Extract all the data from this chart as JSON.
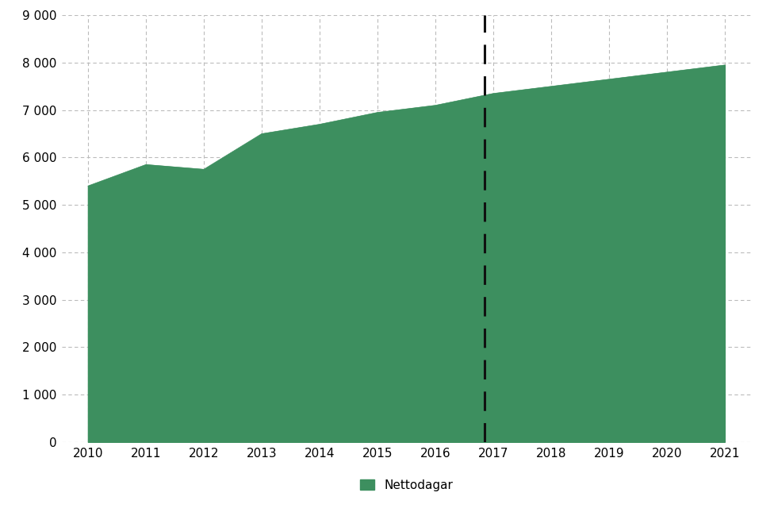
{
  "years": [
    2010,
    2011,
    2012,
    2013,
    2014,
    2015,
    2016,
    2017,
    2018,
    2019,
    2020,
    2021
  ],
  "values": [
    5400,
    5850,
    5750,
    6500,
    6700,
    6950,
    7100,
    7350,
    7500,
    7650,
    7800,
    7950
  ],
  "fill_color": "#3d8f5f",
  "dashed_line_x": 2016.85,
  "dashed_line_color": "#111111",
  "ylim": [
    0,
    9000
  ],
  "yticks": [
    0,
    1000,
    2000,
    3000,
    4000,
    5000,
    6000,
    7000,
    8000,
    9000
  ],
  "xlim_left": 2009.55,
  "xlim_right": 2021.45,
  "xticks": [
    2010,
    2011,
    2012,
    2013,
    2014,
    2015,
    2016,
    2017,
    2018,
    2019,
    2020,
    2021
  ],
  "legend_label": "Nettodagar",
  "grid_color": "#bbbbbb",
  "background_color": "#ffffff",
  "legend_marker_color": "#3d8f5f"
}
